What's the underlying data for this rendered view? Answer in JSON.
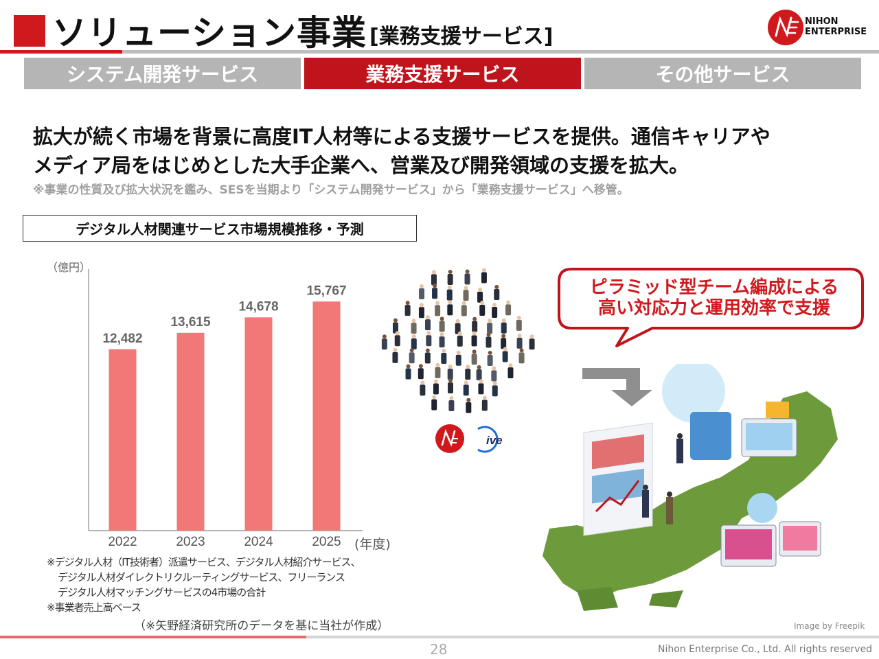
{
  "header": {
    "title": "ソリューション事業",
    "subtitle": "[業務支援サービス]",
    "logo_text_line1": "NIHON",
    "logo_text_line2": "ENTERPRISE"
  },
  "tabs": [
    {
      "label": "システム開発サービス",
      "active": false
    },
    {
      "label": "業務支援サービス",
      "active": true
    },
    {
      "label": "その他サービス",
      "active": false
    }
  ],
  "lead": {
    "line1": "拡大が続く市場を背景に高度IT人材等による支援サービスを提供。通信キャリアや",
    "line2": "メディア局をはじめとした大手企業へ、営業及び開発領域の支援を拡大。",
    "note": "※事業の性質及び拡大状況を鑑み、SESを当期より「システム開発サービス」から「業務支援サービス」へ移管。"
  },
  "chart_title": "デジタル人材関連サービス市場規模推移・予測",
  "chart_data": {
    "type": "bar",
    "categories": [
      "2022",
      "2023",
      "2024",
      "2025"
    ],
    "values": [
      12482,
      13615,
      14678,
      15767
    ],
    "value_labels": [
      "12,482",
      "13,615",
      "14,678",
      "15,767"
    ],
    "ylabel": "（億円）",
    "xlabel": "(年度)",
    "ylim": [
      0,
      18000
    ],
    "bar_color": "#f27777",
    "grid": false
  },
  "footnotes": {
    "line1": "※デジタル人材（IT技術者）派遣サービス、デジタル人材紹介サービス、",
    "line2": "デジタル人材ダイレクトリクルーティングサービス、フリーランス",
    "line3": "デジタル人材マッチングサービスの4市場の合計",
    "line4": "※事業者売上高ベース",
    "source": "（※矢野経済研究所のデータを基に当社が作成）"
  },
  "bubble": {
    "line1": "ピラミッド型チーム編成による",
    "line2": "高い対応力と運用効率で支援"
  },
  "credit": "Image by Freepik",
  "footer": {
    "page": "28",
    "copyright": "Nihon Enterprise Co., Ltd. All rights reserved"
  },
  "colors": {
    "brand_red": "#d0191d",
    "tab_grey": "#b5b5b5",
    "bar": "#f27777"
  },
  "icons": [
    "crowd-illustration",
    "nihon-enterprise-logo",
    "dive-logo",
    "down-arrow-icon",
    "japan-map-illustration"
  ]
}
